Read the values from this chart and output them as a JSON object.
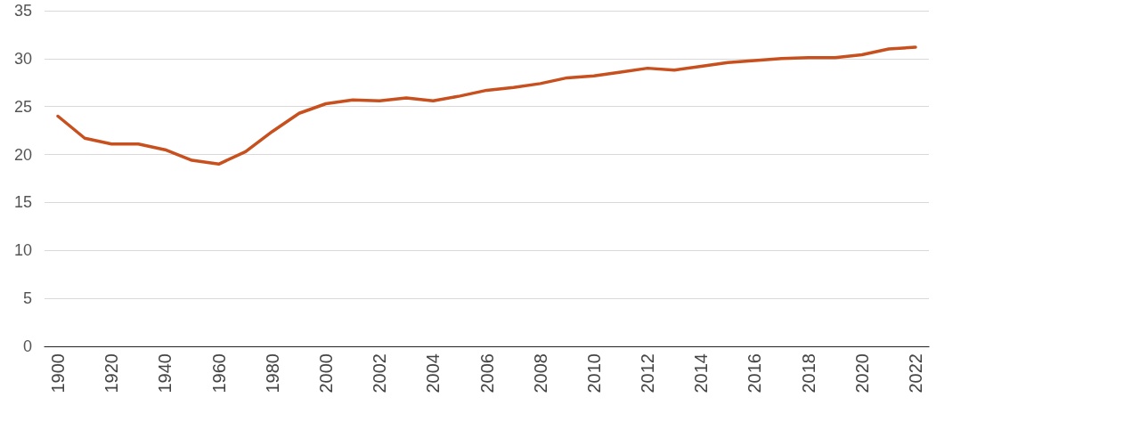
{
  "chart_data": {
    "type": "line",
    "categories": [
      "1900",
      null,
      "1920",
      null,
      "1940",
      null,
      "1960",
      null,
      "1980",
      null,
      "2000",
      null,
      "2002",
      null,
      "2004",
      null,
      "2006",
      null,
      "2008",
      null,
      "2010",
      null,
      "2012",
      null,
      "2014",
      null,
      "2016",
      null,
      "2018",
      null,
      "2020",
      null,
      "2022"
    ],
    "series": [
      {
        "color": "#c8501e",
        "values": [
          24.0,
          21.7,
          21.1,
          21.1,
          20.5,
          19.4,
          19.0,
          20.3,
          22.4,
          24.3,
          25.3,
          25.7,
          25.6,
          25.9,
          25.6,
          26.1,
          26.7,
          27.0,
          27.4,
          28.0,
          28.2,
          28.6,
          29.0,
          28.8,
          29.2,
          29.6,
          29.8,
          30.0,
          30.1,
          30.1,
          30.4,
          31.0,
          31.2
        ]
      }
    ],
    "ylim": [
      0,
      35
    ],
    "yticks": [
      0,
      5,
      10,
      15,
      20,
      25,
      30,
      35
    ],
    "grid": "y",
    "marker": "none",
    "line_style": "solid"
  }
}
